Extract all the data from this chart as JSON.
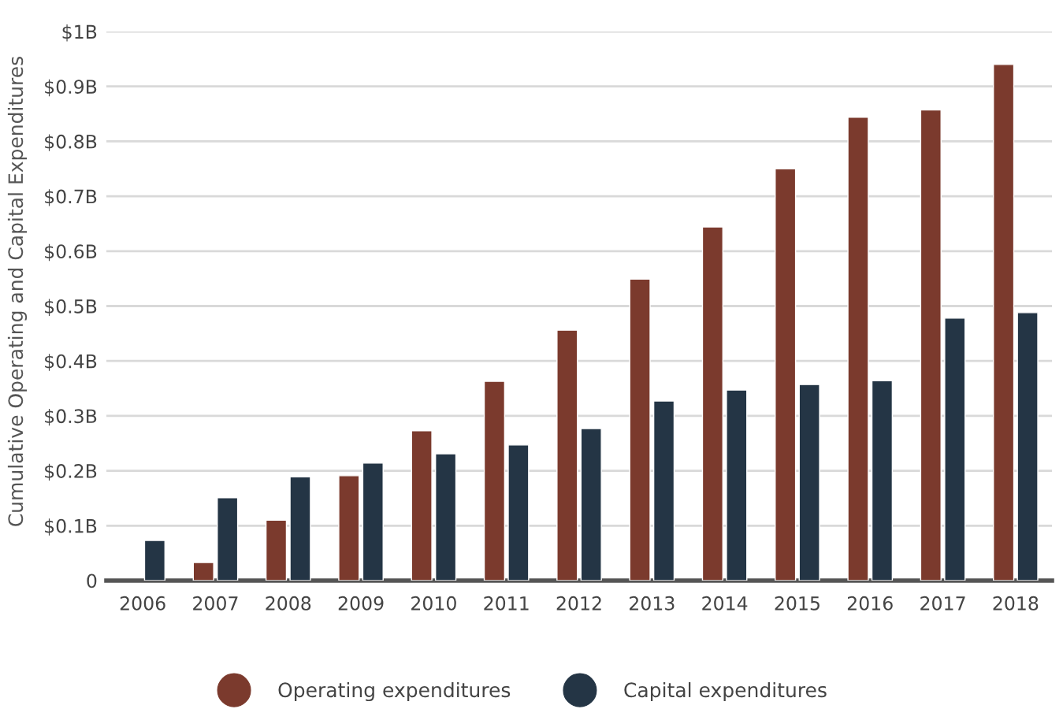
{
  "chart_data": {
    "type": "bar",
    "ylabel": "Cumulative Operating and Capital Expenditures",
    "categories": [
      "2006",
      "2007",
      "2008",
      "2009",
      "2010",
      "2011",
      "2012",
      "2013",
      "2014",
      "2015",
      "2016",
      "2017",
      "2018"
    ],
    "series": [
      {
        "name": "Operating expenditures",
        "color": "#7b3a2d",
        "values": [
          null,
          0.033,
          0.11,
          0.191,
          0.273,
          0.363,
          0.456,
          0.549,
          0.644,
          0.75,
          0.844,
          0.857,
          0.94
        ]
      },
      {
        "name": "Capital expenditures",
        "color": "#243545",
        "values": [
          0.073,
          0.151,
          0.189,
          0.214,
          0.231,
          0.247,
          0.277,
          0.327,
          0.347,
          0.357,
          0.364,
          0.478,
          0.488
        ]
      }
    ],
    "ylim": [
      0,
      1
    ],
    "yticks": [
      {
        "value": 0,
        "label": "0"
      },
      {
        "value": 0.1,
        "label": "$0.1B"
      },
      {
        "value": 0.2,
        "label": "$0.2B"
      },
      {
        "value": 0.3,
        "label": "$0.3B"
      },
      {
        "value": 0.4,
        "label": "$0.4B"
      },
      {
        "value": 0.5,
        "label": "$0.5B"
      },
      {
        "value": 0.6,
        "label": "$0.6B"
      },
      {
        "value": 0.7,
        "label": "$0.7B"
      },
      {
        "value": 0.8,
        "label": "$0.8B"
      },
      {
        "value": 0.9,
        "label": "$0.9B"
      },
      {
        "value": 1,
        "label": "$1B"
      }
    ],
    "grid": "y",
    "legend": "bottom"
  }
}
